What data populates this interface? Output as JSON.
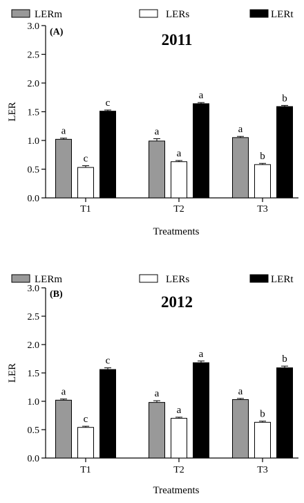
{
  "chart_data": [
    {
      "type": "bar",
      "panel_label": "(A)",
      "title": "2011",
      "xlabel": "Treatments",
      "ylabel": "LER",
      "ylim": [
        0,
        3.0
      ],
      "yticks": [
        "0.0",
        "0.5",
        "1.0",
        "1.5",
        "2.0",
        "2.5",
        "3.0"
      ],
      "categories": [
        "T1",
        "T2",
        "T3"
      ],
      "legend_position": "top",
      "series": [
        {
          "name": "LERm",
          "color": "#999999",
          "values": [
            1.02,
            0.99,
            1.05
          ],
          "errors": [
            0.02,
            0.04,
            0.02
          ],
          "letters": [
            "a",
            "a",
            "a"
          ]
        },
        {
          "name": "LERs",
          "color": "#ffffff",
          "values": [
            0.53,
            0.63,
            0.58
          ],
          "errors": [
            0.03,
            0.02,
            0.02
          ],
          "letters": [
            "c",
            "a",
            "b"
          ]
        },
        {
          "name": "LERt",
          "color": "#000000",
          "values": [
            1.51,
            1.64,
            1.59
          ],
          "errors": [
            0.02,
            0.02,
            0.02
          ],
          "letters": [
            "c",
            "a",
            "b"
          ]
        }
      ]
    },
    {
      "type": "bar",
      "panel_label": "(B)",
      "title": "2012",
      "xlabel": "Treatments",
      "ylabel": "LER",
      "ylim": [
        0,
        3.0
      ],
      "yticks": [
        "0.0",
        "0.5",
        "1.0",
        "1.5",
        "2.0",
        "2.5",
        "3.0"
      ],
      "categories": [
        "T1",
        "T2",
        "T3"
      ],
      "legend_position": "top",
      "series": [
        {
          "name": "LERm",
          "color": "#999999",
          "values": [
            1.02,
            0.98,
            1.03
          ],
          "errors": [
            0.02,
            0.03,
            0.02
          ],
          "letters": [
            "a",
            "a",
            "a"
          ]
        },
        {
          "name": "LERs",
          "color": "#ffffff",
          "values": [
            0.54,
            0.7,
            0.63
          ],
          "errors": [
            0.02,
            0.02,
            0.02
          ],
          "letters": [
            "c",
            "a",
            "b"
          ]
        },
        {
          "name": "LERt",
          "color": "#000000",
          "values": [
            1.56,
            1.68,
            1.59
          ],
          "errors": [
            0.03,
            0.03,
            0.03
          ],
          "letters": [
            "c",
            "a",
            "b"
          ]
        }
      ]
    }
  ]
}
